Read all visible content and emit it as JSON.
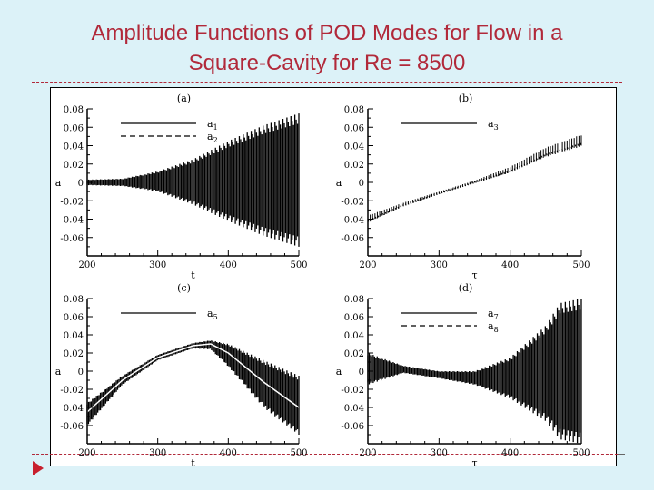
{
  "slide": {
    "title_line1": "Amplitude Functions of POD Modes for Flow in a",
    "title_line2": "Square-Cavity for Re = 8500",
    "title_color": "#b1293a",
    "background": "#dcf2f8",
    "nav_icon": "play-arrow-icon"
  },
  "chart_data": [
    {
      "type": "line",
      "panel": "(a)",
      "title": "(a)",
      "xlabel": "t",
      "ylabel": "a",
      "xlim": [
        200,
        500
      ],
      "ylim": [
        -0.08,
        0.08
      ],
      "xticks": [
        "200",
        "300",
        "400",
        "500"
      ],
      "yticks": [
        "0.08",
        "0.06",
        "0.04",
        "0.02",
        "0",
        "-0.02",
        "0.04",
        "-0.06"
      ],
      "legend": [
        {
          "name": "a1",
          "style": "solid"
        },
        {
          "name": "a2",
          "style": "dashed"
        }
      ],
      "series": [
        {
          "name": "a1 envelope upper",
          "x": [
            200,
            250,
            300,
            350,
            400,
            450,
            500
          ],
          "values": [
            0.003,
            0.004,
            0.012,
            0.025,
            0.045,
            0.062,
            0.075
          ]
        },
        {
          "name": "a1 envelope lower",
          "x": [
            200,
            250,
            300,
            350,
            400,
            450,
            500
          ],
          "values": [
            -0.003,
            -0.004,
            -0.01,
            -0.024,
            -0.042,
            -0.058,
            -0.07
          ]
        }
      ],
      "description": "Two oscillating modes with amplitude growing from ~0.003 at t=200 to ~0.075 at t=500"
    },
    {
      "type": "line",
      "panel": "(b)",
      "title": "(b)",
      "xlabel": "τ",
      "ylabel": "a",
      "xlim": [
        200,
        500
      ],
      "ylim": [
        -0.08,
        0.08
      ],
      "xticks": [
        "200",
        "300",
        "400",
        "500"
      ],
      "yticks": [
        "0.08",
        "0.06",
        "0.04",
        "0.02",
        "0",
        "-0.02",
        "0.04",
        "-0.06"
      ],
      "legend": [
        {
          "name": "a3",
          "style": "solid"
        }
      ],
      "series": [
        {
          "name": "a3 mean",
          "x": [
            200,
            250,
            300,
            350,
            400,
            450,
            500
          ],
          "values": [
            -0.042,
            -0.025,
            -0.012,
            0.0,
            0.012,
            0.03,
            0.042
          ]
        },
        {
          "name": "a3 upper",
          "x": [
            200,
            250,
            300,
            350,
            400,
            450,
            500
          ],
          "values": [
            -0.036,
            -0.022,
            -0.01,
            0.002,
            0.017,
            0.038,
            0.052
          ]
        }
      ],
      "description": "Nearly linear increase from about -0.045 to 0.045 with small oscillations at the ends"
    },
    {
      "type": "line",
      "panel": "(c)",
      "title": "(c)",
      "xlabel": "t",
      "ylabel": "a",
      "xlim": [
        200,
        500
      ],
      "ylim": [
        -0.08,
        0.08
      ],
      "xticks": [
        "200",
        "300",
        "400",
        "500"
      ],
      "yticks": [
        "0.08",
        "0.06",
        "0.04",
        "0.02",
        "0",
        "-0.02",
        "0.04",
        "-0.06"
      ],
      "legend": [
        {
          "name": "a5",
          "style": "solid"
        }
      ],
      "series": [
        {
          "name": "a5 mean",
          "x": [
            200,
            250,
            300,
            350,
            375,
            400,
            450,
            500
          ],
          "values": [
            -0.045,
            -0.01,
            0.015,
            0.028,
            0.03,
            0.02,
            -0.012,
            -0.04
          ]
        },
        {
          "name": "a5 upper",
          "x": [
            200,
            250,
            300,
            350,
            375,
            400,
            450,
            500
          ],
          "values": [
            -0.035,
            -0.005,
            0.018,
            0.031,
            0.034,
            0.03,
            0.012,
            -0.005
          ]
        },
        {
          "name": "a5 lower",
          "x": [
            200,
            250,
            300,
            350,
            375,
            400,
            450,
            500
          ],
          "values": [
            -0.06,
            -0.015,
            0.012,
            0.025,
            0.024,
            0.005,
            -0.04,
            -0.07
          ]
        }
      ],
      "description": "Rises to peak ~0.03 at t≈370 then decays to ~-0.04 with growing oscillations"
    },
    {
      "type": "line",
      "panel": "(d)",
      "title": "(d)",
      "xlabel": "τ",
      "ylabel": "a",
      "xlim": [
        200,
        500
      ],
      "ylim": [
        -0.08,
        0.08
      ],
      "xticks": [
        "200",
        "300",
        "400",
        "500"
      ],
      "yticks": [
        "0.08",
        "0.06",
        "0.04",
        "0.02",
        "0",
        "-0.02",
        "0.04",
        "-0.06"
      ],
      "legend": [
        {
          "name": "a7",
          "style": "solid"
        },
        {
          "name": "a8",
          "style": "dashed"
        }
      ],
      "series": [
        {
          "name": "upper envelope",
          "x": [
            200,
            250,
            300,
            350,
            400,
            450,
            470,
            500
          ],
          "values": [
            0.02,
            0.006,
            0.0,
            0.0,
            0.015,
            0.05,
            0.075,
            0.08
          ]
        },
        {
          "name": "lower envelope",
          "x": [
            200,
            250,
            300,
            350,
            400,
            450,
            470,
            500
          ],
          "values": [
            -0.015,
            -0.002,
            -0.008,
            -0.015,
            -0.03,
            -0.055,
            -0.075,
            -0.08
          ]
        }
      ],
      "description": "Oscillation decays near t=300 then grows rapidly to saturate ±0.08 by t≈470"
    }
  ]
}
